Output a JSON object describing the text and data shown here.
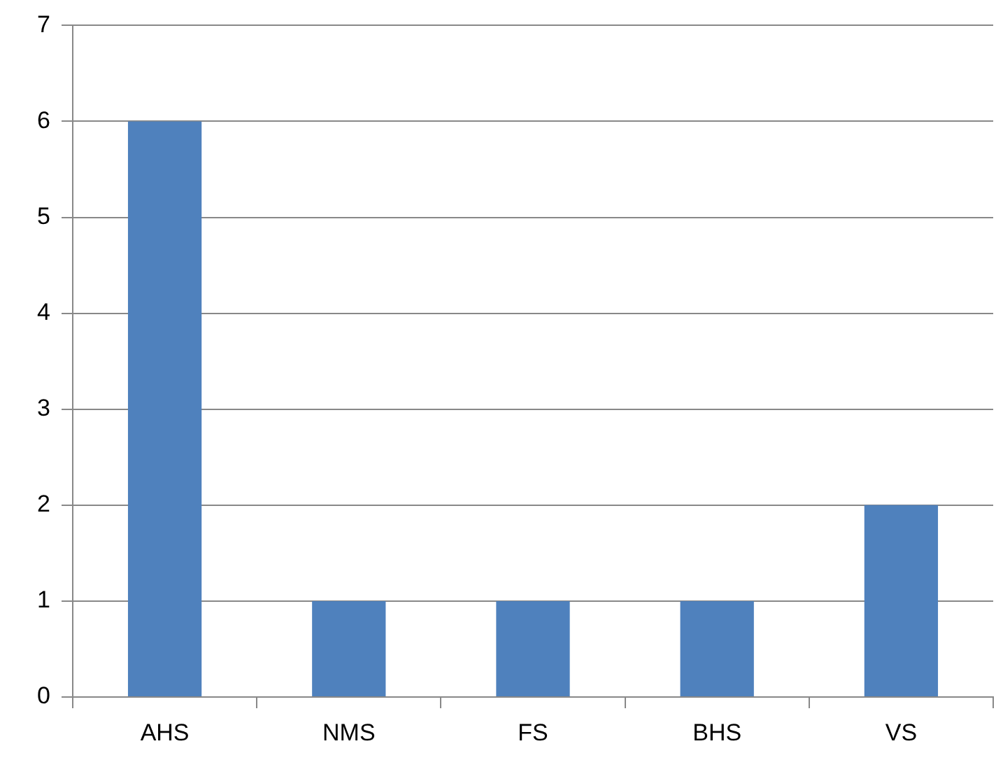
{
  "chart_data": {
    "type": "bar",
    "categories": [
      "AHS",
      "NMS",
      "FS",
      "BHS",
      "VS"
    ],
    "values": [
      6,
      1,
      1,
      1,
      2
    ],
    "color": "#4f81bd",
    "ylim": [
      0,
      7
    ],
    "yticks": [
      0,
      1,
      2,
      3,
      4,
      5,
      6,
      7
    ],
    "grid": "y",
    "legend": false
  }
}
